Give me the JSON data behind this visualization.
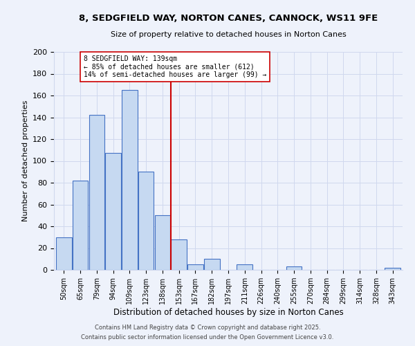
{
  "title": "8, SEDGFIELD WAY, NORTON CANES, CANNOCK, WS11 9FE",
  "subtitle": "Size of property relative to detached houses in Norton Canes",
  "xlabel": "Distribution of detached houses by size in Norton Canes",
  "ylabel": "Number of detached properties",
  "bar_labels": [
    "50sqm",
    "65sqm",
    "79sqm",
    "94sqm",
    "109sqm",
    "123sqm",
    "138sqm",
    "153sqm",
    "167sqm",
    "182sqm",
    "197sqm",
    "211sqm",
    "226sqm",
    "240sqm",
    "255sqm",
    "270sqm",
    "284sqm",
    "299sqm",
    "314sqm",
    "328sqm",
    "343sqm"
  ],
  "bar_values": [
    30,
    82,
    142,
    107,
    165,
    90,
    50,
    28,
    5,
    10,
    0,
    5,
    0,
    0,
    3,
    0,
    0,
    0,
    0,
    0,
    2
  ],
  "bar_color": "#c6d9f1",
  "bar_edge_color": "#4472c4",
  "vline_color": "#cc0000",
  "annotation_title": "8 SEDGFIELD WAY: 139sqm",
  "annotation_line1": "← 85% of detached houses are smaller (612)",
  "annotation_line2": "14% of semi-detached houses are larger (99) →",
  "annotation_box_color": "#ffffff",
  "annotation_box_edge": "#cc0000",
  "ylim": [
    0,
    200
  ],
  "yticks": [
    0,
    20,
    40,
    60,
    80,
    100,
    120,
    140,
    160,
    180,
    200
  ],
  "footer1": "Contains HM Land Registry data © Crown copyright and database right 2025.",
  "footer2": "Contains public sector information licensed under the Open Government Licence v3.0.",
  "background_color": "#eef2fb",
  "grid_color": "#d0d8ee"
}
